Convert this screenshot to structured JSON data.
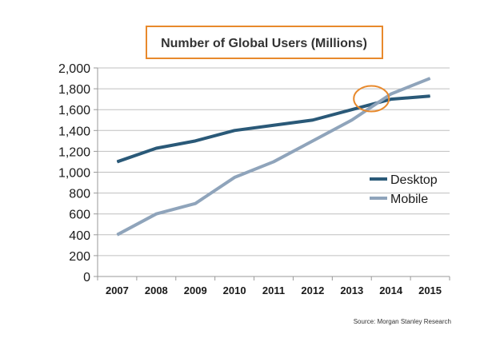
{
  "colors": {
    "desktop": "#2a5978",
    "mobile": "#8fa4bb",
    "title_border": "#e8892c",
    "highlight": "#e8892c",
    "grid": "#bfbfbf",
    "axis": "#9a9a9a"
  },
  "chart_data": {
    "type": "line",
    "title": "Number of Global Users (Millions)",
    "xlabel": "",
    "ylabel": "",
    "categories": [
      "2007",
      "2008",
      "2009",
      "2010",
      "2011",
      "2012",
      "2013",
      "2014",
      "2015"
    ],
    "ylim": [
      0,
      2000
    ],
    "yticks": [
      0,
      200,
      400,
      600,
      800,
      1000,
      1200,
      1400,
      1600,
      1800,
      2000
    ],
    "ytick_labels": [
      "0",
      "200",
      "400",
      "600",
      "800",
      "1,000",
      "1,200",
      "1,400",
      "1,600",
      "1,800",
      "2,000"
    ],
    "grid": true,
    "legend_position": "right",
    "series": [
      {
        "name": "Desktop",
        "color": "#2a5978",
        "values": [
          1100,
          1230,
          1300,
          1400,
          1450,
          1500,
          1600,
          1700,
          1730
        ]
      },
      {
        "name": "Mobile",
        "color": "#8fa4bb",
        "values": [
          400,
          600,
          700,
          950,
          1100,
          1300,
          1500,
          1750,
          1900
        ]
      }
    ],
    "annotation": {
      "type": "ellipse",
      "x_position": 7,
      "y_value": 1690,
      "description": "crossover"
    },
    "source": "Source: Morgan Stanley Research"
  }
}
